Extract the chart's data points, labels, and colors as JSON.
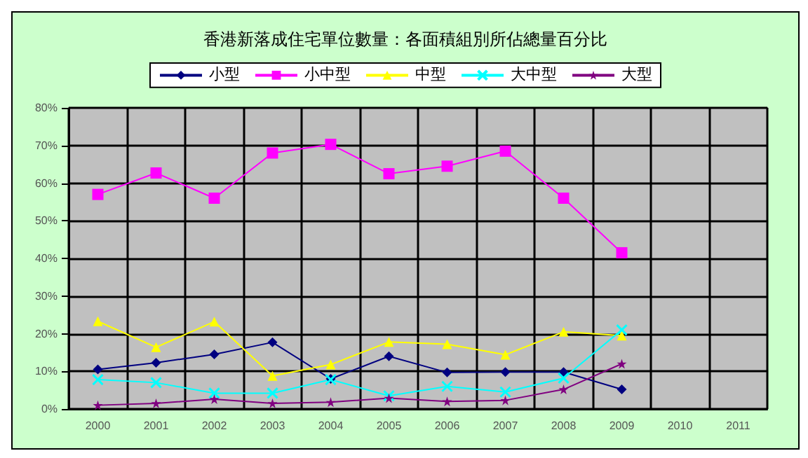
{
  "chart_data": {
    "type": "line",
    "title": "香港新落成住宅單位數量：各面積組別所佔總量百分比",
    "categories": [
      "2000",
      "2001",
      "2002",
      "2003",
      "2004",
      "2005",
      "2006",
      "2007",
      "2008",
      "2009",
      "2010",
      "2011"
    ],
    "series": [
      {
        "name": "小型",
        "color": "#000080",
        "marker": "diamond",
        "values": [
          10.5,
          12.3,
          14.5,
          17.7,
          8,
          14,
          9.7,
          9.8,
          9.8,
          5.2,
          null,
          null
        ]
      },
      {
        "name": "小中型",
        "color": "#ff00ff",
        "marker": "square",
        "values": [
          57,
          62.7,
          56,
          68,
          70.3,
          62.5,
          64.5,
          68.5,
          56,
          41.5,
          null,
          null
        ]
      },
      {
        "name": "中型",
        "color": "#ffff00",
        "marker": "triangle",
        "values": [
          23.3,
          16.4,
          23.2,
          8.8,
          11.8,
          17.8,
          17.2,
          14.4,
          20.5,
          19.5,
          null,
          null
        ]
      },
      {
        "name": "大中型",
        "color": "#00ffff",
        "marker": "cross",
        "values": [
          7.8,
          7,
          4.2,
          4.2,
          7.8,
          3.5,
          6,
          4.5,
          8.2,
          21,
          null,
          null
        ]
      },
      {
        "name": "大型",
        "color": "#800080",
        "marker": "star",
        "values": [
          1,
          1.5,
          2.6,
          1.5,
          1.8,
          2.9,
          2,
          2.3,
          5.2,
          12,
          null,
          null
        ]
      }
    ],
    "ylim": [
      0,
      80
    ],
    "yticks": [
      {
        "value": 0,
        "label": "0%"
      },
      {
        "value": 10,
        "label": "10%"
      },
      {
        "value": 20,
        "label": "20%"
      },
      {
        "value": 30,
        "label": "30%"
      },
      {
        "value": 40,
        "label": "40%"
      },
      {
        "value": 50,
        "label": "50%"
      },
      {
        "value": 60,
        "label": "60%"
      },
      {
        "value": 70,
        "label": "70%"
      },
      {
        "value": 80,
        "label": "80%"
      }
    ],
    "grid": true,
    "legend": "top"
  }
}
